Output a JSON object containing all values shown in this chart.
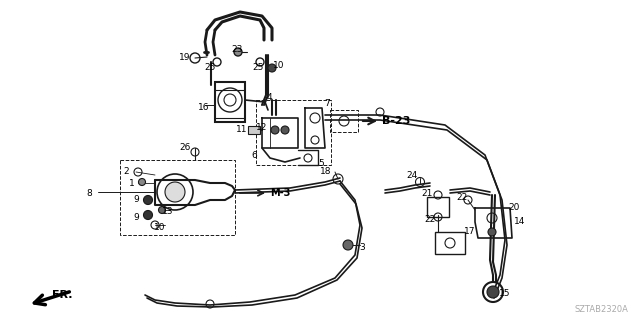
{
  "bg_color": "#ffffff",
  "lc": "#1a1a1a",
  "lw": 1.0,
  "fig_width": 6.4,
  "fig_height": 3.2,
  "watermark": "SZTAB2320A"
}
